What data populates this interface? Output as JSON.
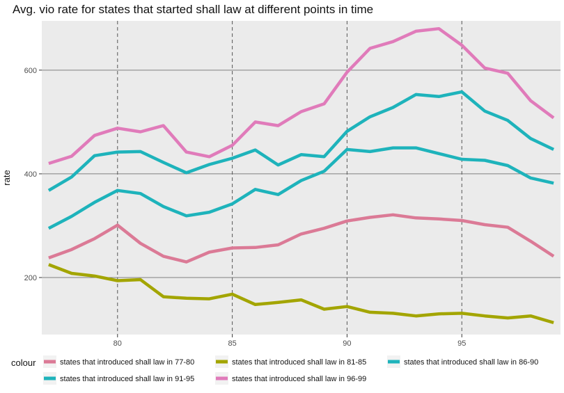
{
  "chart_data": {
    "type": "line",
    "title": "Avg. vio rate for states that started shall law at different points in time",
    "xlabel": "",
    "ylabel": "rate",
    "xlim": [
      76.7,
      99.3
    ],
    "ylim": [
      90,
      695
    ],
    "x_ticks": [
      80,
      85,
      90,
      95
    ],
    "y_ticks": [
      200,
      400,
      600
    ],
    "vlines": [
      80,
      85,
      90,
      95
    ],
    "legend_title": "colour",
    "legend_position": "bottom",
    "grid": true,
    "x": [
      77,
      78,
      79,
      80,
      81,
      82,
      83,
      84,
      85,
      86,
      87,
      88,
      89,
      90,
      91,
      92,
      93,
      94,
      95,
      96,
      97,
      98,
      99
    ],
    "series": [
      {
        "name": "states that introduced shall law in 77-80",
        "color": "#DB7A96",
        "values": [
          238,
          254,
          275,
          301,
          266,
          241,
          230,
          249,
          257,
          258,
          263,
          284,
          295,
          309,
          316,
          321,
          315,
          313,
          310,
          302,
          297,
          270,
          241
        ]
      },
      {
        "name": "states that introduced shall law in 81-85",
        "color": "#A3A500",
        "values": [
          225,
          208,
          203,
          194,
          196,
          163,
          160,
          159,
          168,
          148,
          152,
          157,
          139,
          144,
          133,
          131,
          126,
          130,
          131,
          126,
          122,
          126,
          113
        ]
      },
      {
        "name": "states that introduced shall law in 86-90",
        "color": "#1EB3BB",
        "values": [
          368,
          394,
          435,
          442,
          443,
          422,
          402,
          418,
          430,
          446,
          417,
          437,
          433,
          482,
          510,
          528,
          553,
          549,
          558,
          521,
          503,
          468,
          447
        ]
      },
      {
        "name": "states that introduced shall law in 91-95",
        "color": "#1EB3BB",
        "values": [
          295,
          318,
          345,
          368,
          362,
          337,
          319,
          326,
          342,
          370,
          360,
          387,
          405,
          447,
          443,
          450,
          450,
          439,
          428,
          426,
          416,
          392,
          382
        ]
      },
      {
        "name": "states that introduced shall law in 96-99",
        "color": "#E07BBA",
        "values": [
          420,
          434,
          474,
          488,
          481,
          493,
          442,
          433,
          455,
          500,
          493,
          520,
          535,
          596,
          642,
          655,
          675,
          680,
          648,
          604,
          594,
          541,
          508
        ]
      }
    ]
  }
}
